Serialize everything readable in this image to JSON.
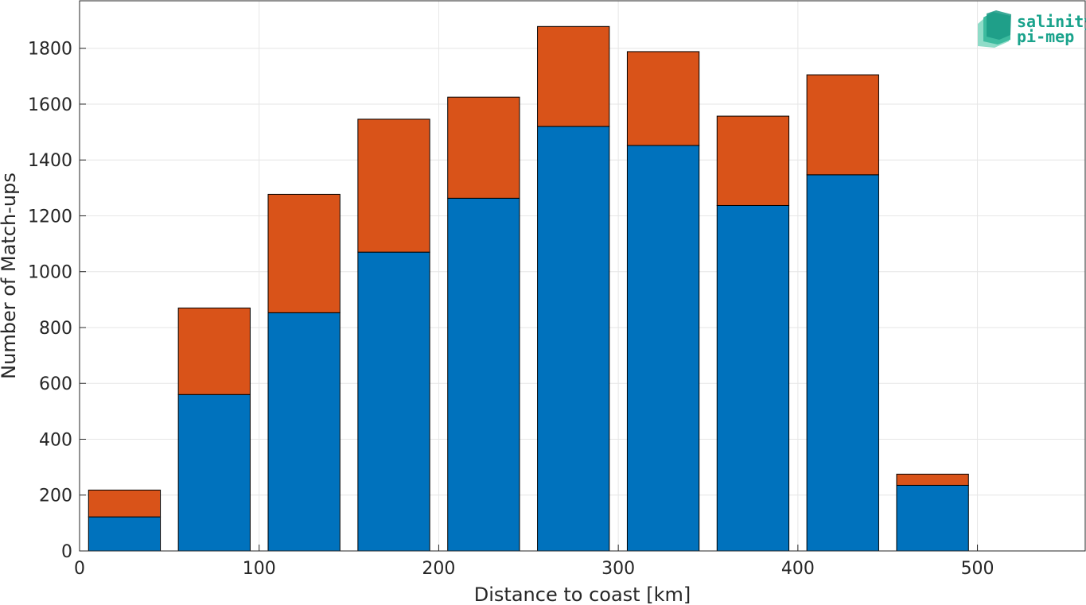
{
  "chart_data": {
    "type": "bar",
    "stacked": true,
    "bin_edges": [
      0,
      50,
      100,
      150,
      200,
      250,
      300,
      350,
      400,
      450,
      500,
      550
    ],
    "x": [
      25,
      75,
      125,
      175,
      225,
      275,
      325,
      375,
      425,
      475,
      525
    ],
    "series": [
      {
        "values": [
          122,
          560,
          853,
          1070,
          1263,
          1520,
          1452,
          1237,
          1347,
          235,
          0
        ],
        "color": "#0072bd"
      },
      {
        "values": [
          96,
          310,
          424,
          476,
          362,
          358,
          336,
          320,
          358,
          40,
          0
        ],
        "color": "#d95319"
      }
    ],
    "xlabel": "Distance to coast [km]",
    "ylabel": "Number of Match-ups",
    "xlim": [
      0,
      560
    ],
    "ylim": [
      0,
      1970
    ],
    "xticks": [
      0,
      100,
      200,
      300,
      400,
      500
    ],
    "yticks": [
      0,
      200,
      400,
      600,
      800,
      1000,
      1200,
      1400,
      1600,
      1800
    ],
    "grid": true
  },
  "logo": {
    "line1": "salinity",
    "line2": "pi-mep",
    "color": "#1aa38c"
  }
}
